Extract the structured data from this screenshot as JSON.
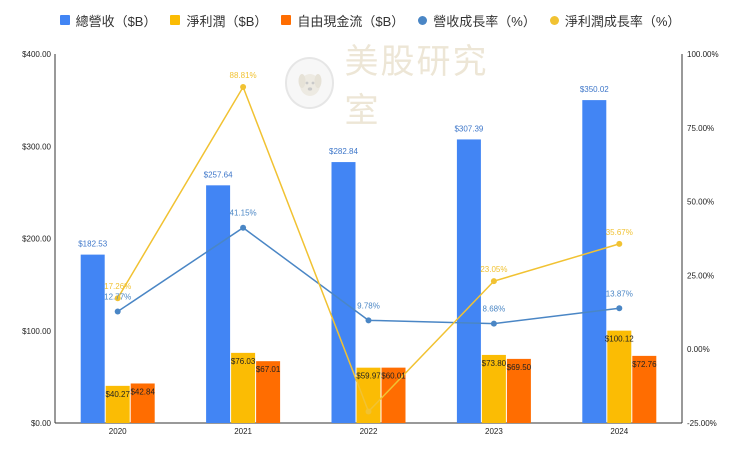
{
  "chart_data": {
    "type": "bar",
    "categories": [
      "2020",
      "2021",
      "2022",
      "2023",
      "2024"
    ],
    "legend_position": "top",
    "grid": false,
    "y_left": {
      "ticks": [
        "$0.00",
        "$100.00",
        "$200.00",
        "$300.00",
        "$400.00"
      ],
      "ylim": [
        0,
        400
      ]
    },
    "y_right": {
      "ticks": [
        "-25.00%",
        "0.00%",
        "25.00%",
        "50.00%",
        "75.00%",
        "100.00%"
      ],
      "ylim": [
        -25,
        100
      ]
    },
    "series": [
      {
        "name": "總營收（$B）",
        "kind": "bar",
        "axis": "left",
        "color": "#4285f4",
        "values": [
          182.53,
          257.64,
          282.84,
          307.39,
          350.02
        ],
        "labels": [
          "$182.53",
          "$257.64",
          "$282.84",
          "$307.39",
          "$350.02"
        ]
      },
      {
        "name": "淨利潤（$B）",
        "kind": "bar",
        "axis": "left",
        "color": "#fbbc04",
        "values": [
          40.27,
          76.03,
          59.97,
          73.8,
          100.12
        ],
        "labels": [
          "$40.27",
          "$76.03",
          "$59.97",
          "$73.80",
          "$100.12"
        ]
      },
      {
        "name": "自由現金流（$B）",
        "kind": "bar",
        "axis": "left",
        "color": "#ff6d01",
        "values": [
          42.84,
          67.01,
          60.01,
          69.5,
          72.76
        ],
        "labels": [
          "$42.84",
          "$67.01",
          "$60.01",
          "$69.50",
          "$72.76"
        ]
      },
      {
        "name": "營收成長率（%）",
        "kind": "line",
        "axis": "right",
        "color": "#4a86c5",
        "values": [
          12.77,
          41.15,
          9.78,
          8.68,
          13.87
        ],
        "labels": [
          "12.77%",
          "41.15%",
          "9.78%",
          "8.68%",
          "13.87%"
        ]
      },
      {
        "name": "淨利潤成長率（%）",
        "kind": "line",
        "axis": "right",
        "color": "#f1c232",
        "values": [
          17.26,
          88.81,
          -21.12,
          23.05,
          35.67
        ],
        "labels": [
          "17.26%",
          "88.81%",
          "",
          "23.05%",
          "35.67%"
        ]
      }
    ]
  },
  "watermark": {
    "text": "美股研究室"
  }
}
